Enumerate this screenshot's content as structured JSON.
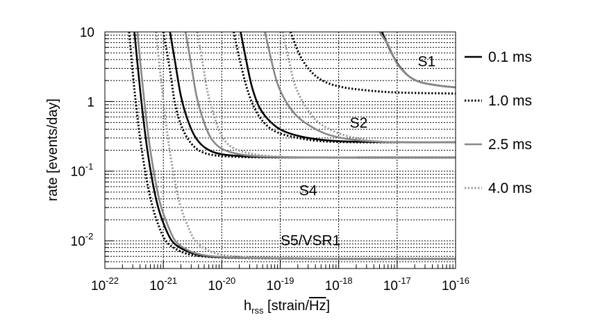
{
  "chart_data": {
    "type": "line",
    "xscale": "log",
    "yscale": "log",
    "xlim": [
      1e-22,
      1e-16
    ],
    "ylim": [
      0.004,
      10
    ],
    "grid": true,
    "xlabel": {
      "main": "h",
      "sub": "rss",
      "rest": " [strain/",
      "radical": "Hz",
      "close": "]"
    },
    "ylabel": "rate [events/day]",
    "x_ticks": [
      {
        "base": "10",
        "exp": "-22",
        "value": 1e-22
      },
      {
        "base": "10",
        "exp": "-21",
        "value": 1e-21
      },
      {
        "base": "10",
        "exp": "-20",
        "value": 1e-20
      },
      {
        "base": "10",
        "exp": "-19",
        "value": 1e-19
      },
      {
        "base": "10",
        "exp": "-18",
        "value": 1e-18
      },
      {
        "base": "10",
        "exp": "-17",
        "value": 1e-17
      },
      {
        "base": "10",
        "exp": "-16",
        "value": 1e-16
      }
    ],
    "y_ticks": [
      {
        "base": "10",
        "exp": "",
        "value": 10
      },
      {
        "base": "1",
        "exp": "",
        "value": 1
      },
      {
        "base": "10",
        "exp": "-1",
        "value": 0.1
      },
      {
        "base": "10",
        "exp": "-2",
        "value": 0.01
      }
    ],
    "legend_position": "right-outside",
    "legend": [
      {
        "label": "0.1 ms",
        "color": "#000000",
        "dash": "solid"
      },
      {
        "label": "1.0 ms",
        "color": "#000000",
        "dash": "dotted"
      },
      {
        "label": "2.5 ms",
        "color": "#888888",
        "dash": "solid"
      },
      {
        "label": "4.0 ms",
        "color": "#999999",
        "dash": "dotted"
      }
    ],
    "annotations": [
      {
        "text": "S1",
        "x": 3.2e-17,
        "y": 3.2
      },
      {
        "text": "S2",
        "x": 2.2e-18,
        "y": 0.42
      },
      {
        "text": "S4",
        "x": 3e-19,
        "y": 0.045
      },
      {
        "text": "S5/VSR1",
        "x": 3.3e-19,
        "y": 0.0086
      }
    ],
    "series": [
      {
        "run": "S1",
        "duration": "0.1 ms",
        "x": [
          5.5e-18,
          8e-18,
          1.1e-17,
          1.6e-17,
          2.5e-17,
          5e-17,
          1e-16
        ],
        "y": [
          10,
          5,
          3.2,
          2.3,
          1.9,
          1.7,
          1.6
        ]
      },
      {
        "run": "S1",
        "duration": "1.0 ms",
        "x": [
          1.5e-19,
          2.2e-19,
          3.5e-19,
          6e-19,
          1.2e-18,
          3e-18,
          1e-17,
          1e-16
        ],
        "y": [
          10,
          4.5,
          2.6,
          1.9,
          1.6,
          1.45,
          1.35,
          1.3
        ]
      },
      {
        "run": "S1",
        "duration": "2.5 ms",
        "x": [
          5e-18,
          7e-18,
          1e-17,
          1.6e-17,
          2.5e-17,
          5e-17,
          1e-16
        ],
        "y": [
          10,
          6.5,
          3.5,
          2.3,
          1.9,
          1.7,
          1.6
        ]
      },
      {
        "run": "S2",
        "duration": "0.1 ms",
        "x": [
          2.1e-20,
          2.6e-20,
          3.3e-20,
          4.5e-20,
          7e-20,
          1.2e-19,
          3e-19,
          1e-18,
          1e-17,
          1e-16
        ],
        "y": [
          10,
          4,
          1.6,
          0.8,
          0.5,
          0.37,
          0.3,
          0.27,
          0.26,
          0.26
        ]
      },
      {
        "run": "S2",
        "duration": "1.0 ms",
        "x": [
          1.6e-20,
          2.1e-20,
          2.8e-20,
          3.8e-20,
          5.5e-20,
          9e-20,
          2e-19,
          5e-19,
          2e-18,
          1e-17
        ],
        "y": [
          10,
          3.5,
          1.4,
          0.75,
          0.48,
          0.36,
          0.3,
          0.27,
          0.26,
          0.26
        ]
      },
      {
        "run": "S2",
        "duration": "2.5 ms",
        "x": [
          5.5e-20,
          7e-20,
          9e-20,
          1.3e-19,
          2e-19,
          3.5e-19,
          7e-19,
          2e-18,
          1e-17,
          1e-16
        ],
        "y": [
          10,
          4,
          1.8,
          0.95,
          0.6,
          0.43,
          0.33,
          0.28,
          0.26,
          0.26
        ]
      },
      {
        "run": "S2",
        "duration": "4.0 ms",
        "x": [
          1.1e-19,
          1.4e-19,
          1.8e-19,
          2.6e-19,
          4e-19,
          7e-19,
          1.4e-18,
          4e-18,
          1e-17
        ],
        "y": [
          10,
          4,
          1.7,
          0.9,
          0.55,
          0.4,
          0.32,
          0.27,
          0.26
        ]
      },
      {
        "run": "S4",
        "duration": "0.1 ms",
        "x": [
          1.3e-21,
          1.6e-21,
          2e-21,
          2.6e-21,
          3.6e-21,
          5.5e-21,
          1e-20,
          3e-20,
          1e-19,
          1e-18,
          1e-16
        ],
        "y": [
          10,
          3.6,
          1.2,
          0.55,
          0.3,
          0.21,
          0.175,
          0.162,
          0.158,
          0.157,
          0.157
        ]
      },
      {
        "run": "S4",
        "duration": "1.0 ms",
        "x": [
          1e-21,
          1.3e-21,
          1.6e-21,
          2.1e-21,
          3e-21,
          4.5e-21,
          8e-21,
          2e-20,
          6e-20,
          1e-18,
          1e-16
        ],
        "y": [
          10,
          2.8,
          0.9,
          0.42,
          0.25,
          0.19,
          0.168,
          0.16,
          0.158,
          0.157,
          0.157
        ]
      },
      {
        "run": "S4",
        "duration": "2.5 ms",
        "x": [
          2.4e-21,
          3e-21,
          3.7e-21,
          4.8e-21,
          6.5e-21,
          1e-20,
          2e-20,
          5e-20,
          2e-19,
          1e-18,
          1e-16
        ],
        "y": [
          10,
          3.4,
          1.2,
          0.55,
          0.3,
          0.21,
          0.175,
          0.162,
          0.158,
          0.157,
          0.157
        ]
      },
      {
        "run": "S4",
        "duration": "4.0 ms",
        "x": [
          3.8e-21,
          4.7e-21,
          5.8e-21,
          7.5e-21,
          1e-20,
          1.5e-20,
          3e-20,
          8e-20,
          3e-19,
          2e-18
        ],
        "y": [
          10,
          3.6,
          1.3,
          0.6,
          0.32,
          0.22,
          0.18,
          0.163,
          0.158,
          0.157
        ]
      },
      {
        "run": "S5/VSR1",
        "duration": "0.1 ms",
        "x": [
          3.2e-22,
          4e-22,
          5e-22,
          6.2e-22,
          7.8e-22,
          1e-21,
          1.4e-21,
          2.2e-21,
          4e-21,
          1e-20,
          1e-19,
          1e-18,
          1e-16
        ],
        "y": [
          10,
          1.5,
          0.3,
          0.09,
          0.035,
          0.018,
          0.01,
          0.0075,
          0.0063,
          0.0058,
          0.0056,
          0.0055,
          0.0055
        ]
      },
      {
        "run": "S5/VSR1",
        "duration": "1.0 ms",
        "x": [
          2.6e-22,
          3.2e-22,
          4e-22,
          5e-22,
          6.3e-22,
          8e-22,
          1.1e-21,
          1.7e-21,
          3e-21,
          8e-21,
          5e-20,
          1e-18,
          1e-16
        ],
        "y": [
          10,
          1.5,
          0.3,
          0.09,
          0.035,
          0.018,
          0.01,
          0.0075,
          0.0063,
          0.0058,
          0.0056,
          0.0055,
          0.0055
        ]
      },
      {
        "run": "S5/VSR1",
        "duration": "2.5 ms",
        "x": [
          3.6e-22,
          4.5e-22,
          5.6e-22,
          7e-22,
          8.8e-22,
          1.15e-21,
          1.6e-21,
          2.5e-21,
          4.5e-21,
          1.2e-20,
          1e-19,
          1e-18,
          1e-16
        ],
        "y": [
          10,
          1.5,
          0.3,
          0.09,
          0.035,
          0.018,
          0.01,
          0.0075,
          0.0063,
          0.0058,
          0.0056,
          0.0055,
          0.0055
        ]
      },
      {
        "run": "S5/VSR1",
        "duration": "4.0 ms",
        "x": [
          7.5e-22,
          9.5e-22,
          1.2e-21,
          1.5e-21,
          1.9e-21,
          2.5e-21,
          3.5e-21,
          5.5e-21,
          1e-20,
          3e-20,
          2e-19,
          1e-18
        ],
        "y": [
          10,
          1.5,
          0.3,
          0.09,
          0.035,
          0.018,
          0.01,
          0.0075,
          0.0063,
          0.0058,
          0.0056,
          0.0055
        ]
      }
    ]
  }
}
